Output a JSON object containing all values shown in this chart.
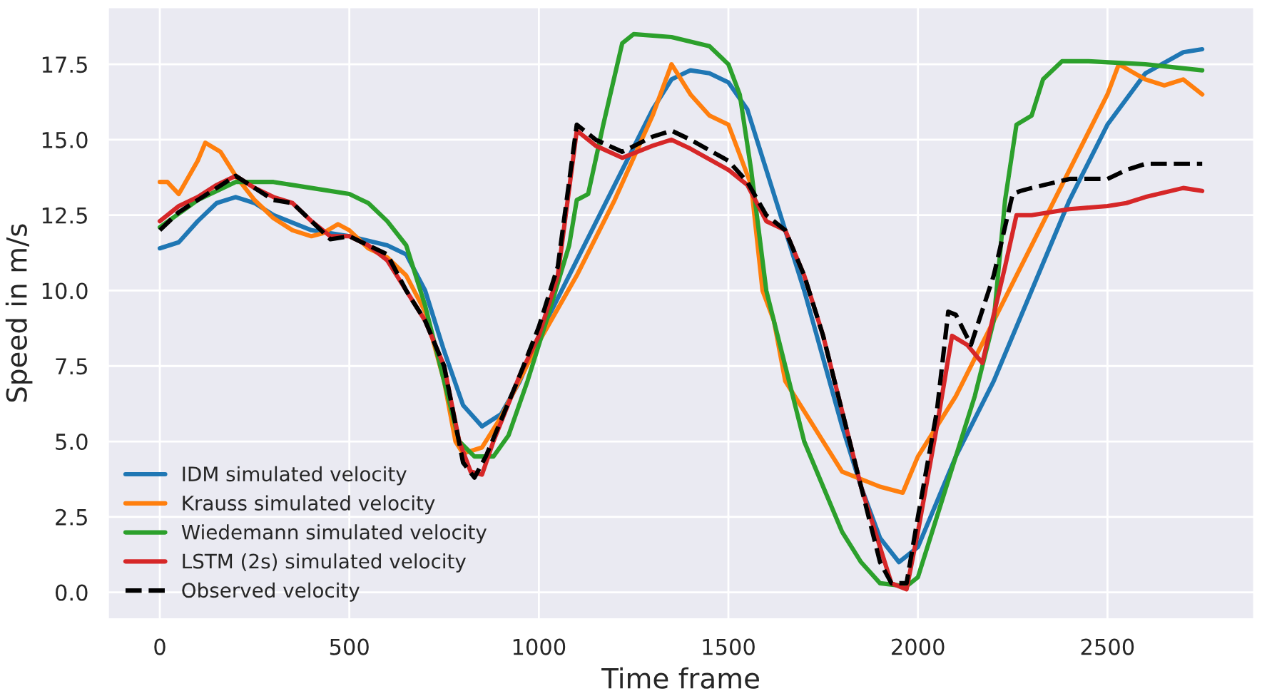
{
  "chart_data": {
    "type": "line",
    "xlabel": "Time frame",
    "ylabel": "Speed in m/s",
    "xlim": [
      -137.5,
      2887.5
    ],
    "ylim": [
      -0.9,
      19.4
    ],
    "xticks": [
      0,
      500,
      1000,
      1500,
      2000,
      2500
    ],
    "yticks": [
      {
        "value": 0,
        "label": "0.0"
      },
      {
        "value": 2.5,
        "label": "2.5"
      },
      {
        "value": 5,
        "label": "5.0"
      },
      {
        "value": 7.5,
        "label": "7.5"
      },
      {
        "value": 10,
        "label": "10.0"
      },
      {
        "value": 12.5,
        "label": "12.5"
      },
      {
        "value": 15,
        "label": "15.0"
      },
      {
        "value": 17.5,
        "label": "17.5"
      }
    ],
    "grid": true,
    "legend": "bottom left",
    "series": [
      {
        "name": "IDM simulated velocity",
        "color": "#1f77b4",
        "line_style": "solid",
        "x": [
          0,
          50,
          100,
          150,
          200,
          250,
          300,
          400,
          500,
          600,
          650,
          700,
          750,
          800,
          850,
          900,
          950,
          1000,
          1100,
          1200,
          1300,
          1350,
          1400,
          1450,
          1500,
          1550,
          1600,
          1700,
          1800,
          1850,
          1900,
          1950,
          2000,
          2050,
          2100,
          2200,
          2300,
          2400,
          2500,
          2600,
          2700,
          2750
        ],
        "values": [
          11.4,
          11.6,
          12.3,
          12.9,
          13.1,
          12.9,
          12.5,
          12.0,
          11.8,
          11.5,
          11.2,
          10.0,
          8.0,
          6.2,
          5.5,
          5.9,
          7.0,
          8.5,
          11.0,
          13.5,
          16.0,
          17.0,
          17.3,
          17.2,
          16.9,
          16.0,
          14.0,
          10.0,
          5.5,
          3.5,
          1.8,
          1.0,
          1.5,
          3.0,
          4.5,
          7.0,
          10.0,
          13.0,
          15.5,
          17.2,
          17.9,
          18.0
        ]
      },
      {
        "name": "Krauss simulated velocity",
        "color": "#ff7f0e",
        "line_style": "solid",
        "x": [
          0,
          20,
          50,
          100,
          120,
          160,
          200,
          250,
          300,
          350,
          400,
          430,
          470,
          500,
          550,
          600,
          650,
          700,
          750,
          780,
          800,
          850,
          900,
          1000,
          1100,
          1200,
          1300,
          1350,
          1400,
          1450,
          1500,
          1530,
          1560,
          1590,
          1620,
          1650,
          1700,
          1750,
          1800,
          1900,
          1960,
          2000,
          2100,
          2200,
          2300,
          2400,
          2500,
          2530,
          2600,
          2650,
          2700,
          2750
        ],
        "values": [
          13.6,
          13.6,
          13.2,
          14.3,
          14.9,
          14.6,
          13.8,
          13.0,
          12.4,
          12.0,
          11.8,
          11.9,
          12.2,
          12.0,
          11.4,
          11.1,
          10.5,
          9.3,
          7.0,
          5.0,
          4.6,
          4.8,
          5.8,
          8.3,
          10.5,
          13.0,
          15.8,
          17.5,
          16.5,
          15.8,
          15.5,
          14.5,
          13.5,
          10.0,
          9.0,
          7.0,
          6.0,
          5.0,
          4.0,
          3.5,
          3.3,
          4.5,
          6.5,
          9.0,
          11.5,
          14.0,
          16.5,
          17.5,
          17.0,
          16.8,
          17.0,
          16.5
        ]
      },
      {
        "name": "Wiedemann simulated velocity",
        "color": "#2ca02c",
        "line_style": "solid",
        "x": [
          0,
          100,
          200,
          300,
          400,
          500,
          550,
          600,
          650,
          700,
          750,
          790,
          830,
          880,
          920,
          970,
          1020,
          1080,
          1100,
          1130,
          1170,
          1220,
          1250,
          1350,
          1450,
          1500,
          1530,
          1560,
          1600,
          1650,
          1700,
          1750,
          1800,
          1850,
          1900,
          1970,
          2000,
          2050,
          2100,
          2150,
          2200,
          2230,
          2260,
          2300,
          2330,
          2380,
          2450,
          2600,
          2750
        ],
        "values": [
          12.1,
          13.0,
          13.6,
          13.6,
          13.4,
          13.2,
          12.9,
          12.3,
          11.5,
          9.5,
          7.0,
          5.0,
          4.5,
          4.5,
          5.2,
          7.0,
          9.0,
          11.5,
          13.0,
          13.2,
          15.5,
          18.2,
          18.5,
          18.4,
          18.1,
          17.5,
          16.5,
          14.0,
          10.0,
          7.5,
          5.0,
          3.5,
          2.0,
          1.0,
          0.3,
          0.2,
          0.5,
          2.5,
          4.5,
          6.5,
          9.0,
          13.0,
          15.5,
          15.8,
          17.0,
          17.6,
          17.6,
          17.5,
          17.3
        ]
      },
      {
        "name": "LSTM (2s) simulated velocity",
        "color": "#d62728",
        "line_style": "solid",
        "x": [
          0,
          50,
          100,
          150,
          200,
          250,
          300,
          350,
          400,
          450,
          500,
          550,
          600,
          650,
          700,
          750,
          790,
          820,
          850,
          880,
          950,
          1000,
          1050,
          1100,
          1150,
          1220,
          1300,
          1350,
          1400,
          1500,
          1550,
          1600,
          1650,
          1700,
          1750,
          1800,
          1850,
          1900,
          1930,
          1970,
          2000,
          2050,
          2090,
          2130,
          2170,
          2230,
          2260,
          2300,
          2400,
          2500,
          2550,
          2600,
          2700,
          2750
        ],
        "values": [
          12.3,
          12.8,
          13.1,
          13.5,
          13.8,
          13.4,
          13.1,
          12.9,
          12.3,
          11.8,
          11.8,
          11.5,
          11.0,
          10.0,
          9.0,
          7.5,
          5.0,
          4.0,
          3.9,
          5.0,
          7.2,
          8.5,
          10.5,
          15.3,
          14.8,
          14.4,
          14.8,
          15.0,
          14.7,
          14.0,
          13.5,
          12.3,
          12.0,
          10.5,
          8.5,
          6.0,
          3.5,
          1.5,
          0.3,
          0.1,
          2.0,
          5.5,
          8.5,
          8.2,
          7.6,
          10.8,
          12.5,
          12.5,
          12.7,
          12.8,
          12.9,
          13.1,
          13.4,
          13.3
        ]
      },
      {
        "name": "Observed velocity",
        "color": "#000000",
        "line_style": "dashed",
        "x": [
          0,
          50,
          100,
          200,
          300,
          350,
          400,
          450,
          500,
          600,
          650,
          700,
          750,
          800,
          830,
          860,
          950,
          1000,
          1050,
          1100,
          1150,
          1220,
          1300,
          1350,
          1400,
          1500,
          1550,
          1600,
          1650,
          1700,
          1750,
          1800,
          1850,
          1900,
          1930,
          1970,
          2000,
          2050,
          2080,
          2100,
          2140,
          2200,
          2250,
          2270,
          2300,
          2400,
          2500,
          2550,
          2600,
          2700,
          2750
        ],
        "values": [
          12.0,
          12.6,
          13.0,
          13.8,
          13.0,
          12.9,
          12.3,
          11.7,
          11.8,
          11.2,
          10.0,
          9.0,
          7.5,
          4.3,
          3.8,
          4.5,
          7.2,
          8.8,
          10.8,
          15.5,
          15.0,
          14.6,
          15.1,
          15.3,
          15.0,
          14.3,
          13.6,
          12.5,
          12.0,
          10.5,
          8.5,
          6.0,
          3.5,
          1.0,
          0.3,
          0.3,
          2.5,
          6.0,
          9.3,
          9.2,
          8.2,
          10.5,
          13.2,
          13.3,
          13.4,
          13.7,
          13.7,
          14.0,
          14.2,
          14.2,
          14.2
        ]
      }
    ]
  }
}
